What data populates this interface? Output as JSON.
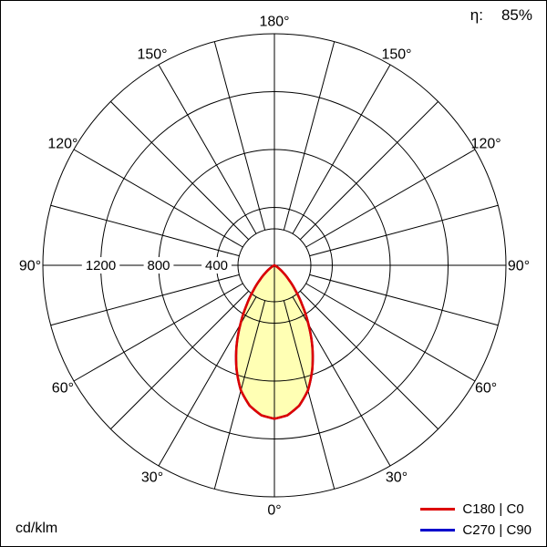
{
  "header": {
    "efficiency_label": "η:",
    "efficiency_value": "85%"
  },
  "footer": {
    "unit": "cd/klm"
  },
  "legend": {
    "items": [
      {
        "label": "C180 | C0",
        "color": "#dd0000"
      },
      {
        "label": "C270 | C90",
        "color": "#0000cc"
      }
    ]
  },
  "chart_data": {
    "type": "polar",
    "subtype": "luminous-intensity-distribution",
    "unit": "cd/klm",
    "efficiency_percent": 85,
    "rings": [
      400,
      800,
      1200,
      1600
    ],
    "ring_labels": [
      "400",
      "800",
      "1200"
    ],
    "angle_labels_deg": [
      0,
      30,
      60,
      90,
      120,
      150,
      180
    ],
    "gamma_deg": [
      0,
      5,
      10,
      15,
      20,
      25,
      30,
      35,
      40,
      45,
      50,
      55,
      60,
      65,
      70,
      75,
      80,
      85,
      90
    ],
    "series": [
      {
        "name": "C180 | C0",
        "color": "#dd0000",
        "fill": "#ffffb4",
        "values": [
          1060,
          1040,
          985,
          895,
          765,
          620,
          470,
          335,
          225,
          140,
          80,
          40,
          15,
          5,
          0,
          0,
          0,
          0,
          0
        ]
      },
      {
        "name": "C270 | C90",
        "color": "#0000cc",
        "fill": "#ffffb4",
        "values": [
          1060,
          1040,
          985,
          895,
          765,
          620,
          470,
          335,
          225,
          140,
          80,
          40,
          15,
          5,
          0,
          0,
          0,
          0,
          0
        ]
      }
    ]
  }
}
